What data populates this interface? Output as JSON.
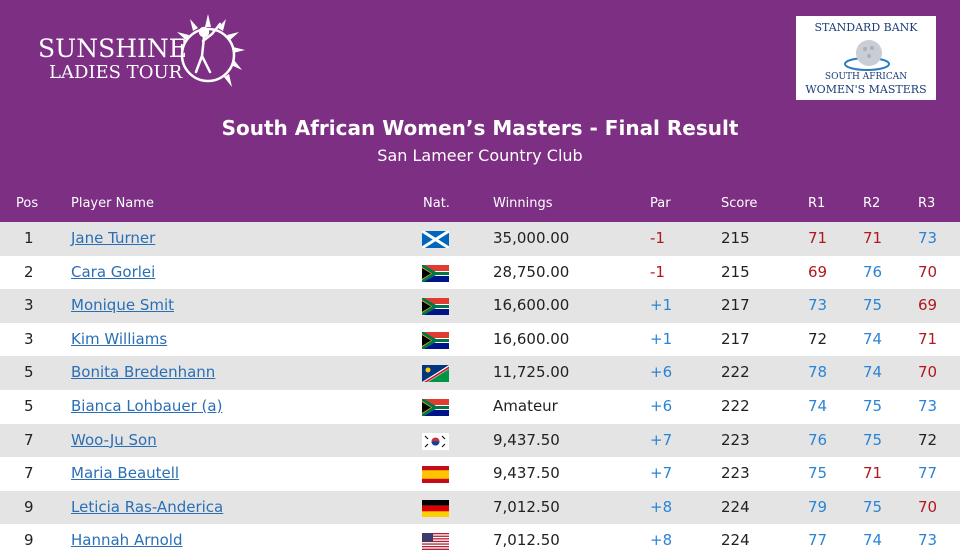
{
  "header": {
    "logo_line1": "SUNSHINE",
    "logo_line2": "LADIES TOUR",
    "sponsor_top": "STANDARD BANK",
    "sponsor_line1": "SOUTH AFRICAN",
    "sponsor_line2": "WOMEN'S MASTERS",
    "title": "South African Women’s Masters - Final Result",
    "subtitle": "San Lameer Country Club",
    "bg_color": "#7d2f83"
  },
  "columns": {
    "pos": "Pos",
    "player": "Player Name",
    "nat": "Nat.",
    "winnings": "Winnings",
    "par": "Par",
    "score": "Score",
    "r1": "R1",
    "r2": "R2",
    "r3": "R3"
  },
  "rows": [
    {
      "pos": "1",
      "name": "Jane Turner",
      "flag": "scotland-flag",
      "winnings": "35,000.00",
      "par": "-1",
      "par_color": "red",
      "score": "215",
      "r1": "71",
      "r1_color": "red",
      "r2": "71",
      "r2_color": "red",
      "r3": "73",
      "r3_color": "blue"
    },
    {
      "pos": "2",
      "name": "Cara Gorlei",
      "flag": "south-africa-flag",
      "winnings": "28,750.00",
      "par": "-1",
      "par_color": "red",
      "score": "215",
      "r1": "69",
      "r1_color": "red",
      "r2": "76",
      "r2_color": "blue",
      "r3": "70",
      "r3_color": "red"
    },
    {
      "pos": "3",
      "name": "Monique Smit",
      "flag": "south-africa-flag",
      "winnings": "16,600.00",
      "par": "+1",
      "par_color": "blue",
      "score": "217",
      "r1": "73",
      "r1_color": "blue",
      "r2": "75",
      "r2_color": "blue",
      "r3": "69",
      "r3_color": "red"
    },
    {
      "pos": "3",
      "name": "Kim Williams",
      "flag": "south-africa-flag",
      "winnings": "16,600.00",
      "par": "+1",
      "par_color": "blue",
      "score": "217",
      "r1": "72",
      "r1_color": "dark",
      "r2": "74",
      "r2_color": "blue",
      "r3": "71",
      "r3_color": "red"
    },
    {
      "pos": "5",
      "name": "Bonita Bredenhann",
      "flag": "namibia-flag",
      "winnings": "11,725.00",
      "par": "+6",
      "par_color": "blue",
      "score": "222",
      "r1": "78",
      "r1_color": "blue",
      "r2": "74",
      "r2_color": "blue",
      "r3": "70",
      "r3_color": "red"
    },
    {
      "pos": "5",
      "name": "Bianca Lohbauer (a)",
      "flag": "south-africa-flag",
      "winnings": "Amateur",
      "par": "+6",
      "par_color": "blue",
      "score": "222",
      "r1": "74",
      "r1_color": "blue",
      "r2": "75",
      "r2_color": "blue",
      "r3": "73",
      "r3_color": "blue"
    },
    {
      "pos": "7",
      "name": "Woo-Ju Son",
      "flag": "south-korea-flag",
      "winnings": "9,437.50",
      "par": "+7",
      "par_color": "blue",
      "score": "223",
      "r1": "76",
      "r1_color": "blue",
      "r2": "75",
      "r2_color": "blue",
      "r3": "72",
      "r3_color": "dark"
    },
    {
      "pos": "7",
      "name": "Maria Beautell",
      "flag": "spain-flag",
      "winnings": "9,437.50",
      "par": "+7",
      "par_color": "blue",
      "score": "223",
      "r1": "75",
      "r1_color": "blue",
      "r2": "71",
      "r2_color": "red",
      "r3": "77",
      "r3_color": "blue"
    },
    {
      "pos": "9",
      "name": "Leticia Ras-Anderica",
      "flag": "germany-flag",
      "winnings": "7,012.50",
      "par": "+8",
      "par_color": "blue",
      "score": "224",
      "r1": "79",
      "r1_color": "blue",
      "r2": "75",
      "r2_color": "blue",
      "r3": "70",
      "r3_color": "red"
    },
    {
      "pos": "9",
      "name": "Hannah Arnold",
      "flag": "usa-flag",
      "winnings": "7,012.50",
      "par": "+8",
      "par_color": "blue",
      "score": "224",
      "r1": "77",
      "r1_color": "blue",
      "r2": "74",
      "r2_color": "blue",
      "r3": "73",
      "r3_color": "blue"
    }
  ]
}
